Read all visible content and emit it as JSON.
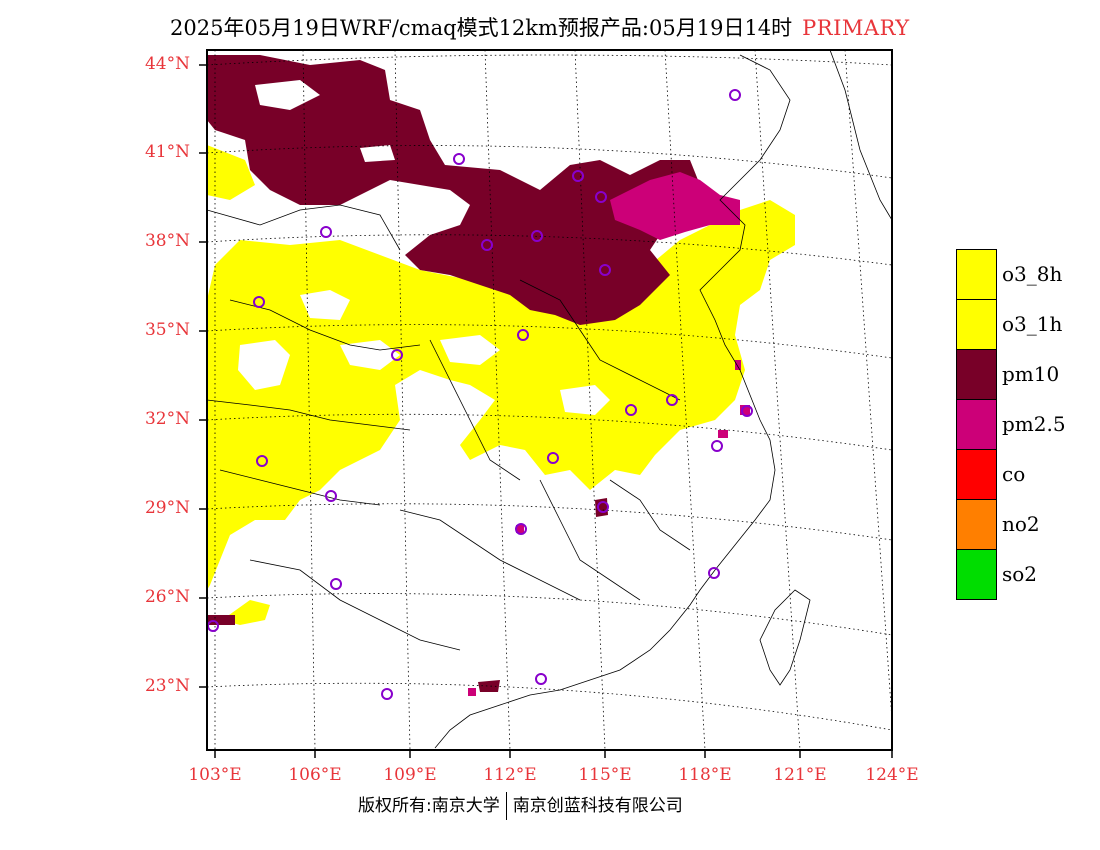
{
  "header": {
    "title": "2025年05月19日WRF/cmaq模式12km预报产品:05月19日14时",
    "badge": "PRIMARY"
  },
  "map": {
    "lat_labels": [
      "44°N",
      "41°N",
      "38°N",
      "35°N",
      "32°N",
      "29°N",
      "26°N",
      "23°N"
    ],
    "lon_labels": [
      "103°E",
      "106°E",
      "109°E",
      "112°E",
      "115°E",
      "118°E",
      "121°E",
      "124°E"
    ],
    "colors": {
      "o3_8h": "#ffff00",
      "o3_1h": "#ffff00",
      "pm10": "#780028",
      "pm25": "#cc0078",
      "co": "#ff0000",
      "no2": "#ff7f00",
      "so2": "#00dd00",
      "station_marker": "#8800cc",
      "label_red": "#e8353a"
    }
  },
  "legend": {
    "items": [
      {
        "label": "o3_8h",
        "color": "#ffff00"
      },
      {
        "label": "o3_1h",
        "color": "#ffff00"
      },
      {
        "label": "pm10",
        "color": "#780028"
      },
      {
        "label": "pm2.5",
        "color": "#cc0078"
      },
      {
        "label": "co",
        "color": "#ff0000"
      },
      {
        "label": "no2",
        "color": "#ff7f00"
      },
      {
        "label": "so2",
        "color": "#00dd00"
      }
    ]
  },
  "footer": {
    "copyright_left": "版权所有:南京大学",
    "copyright_right": "南京创蓝科技有限公司"
  }
}
